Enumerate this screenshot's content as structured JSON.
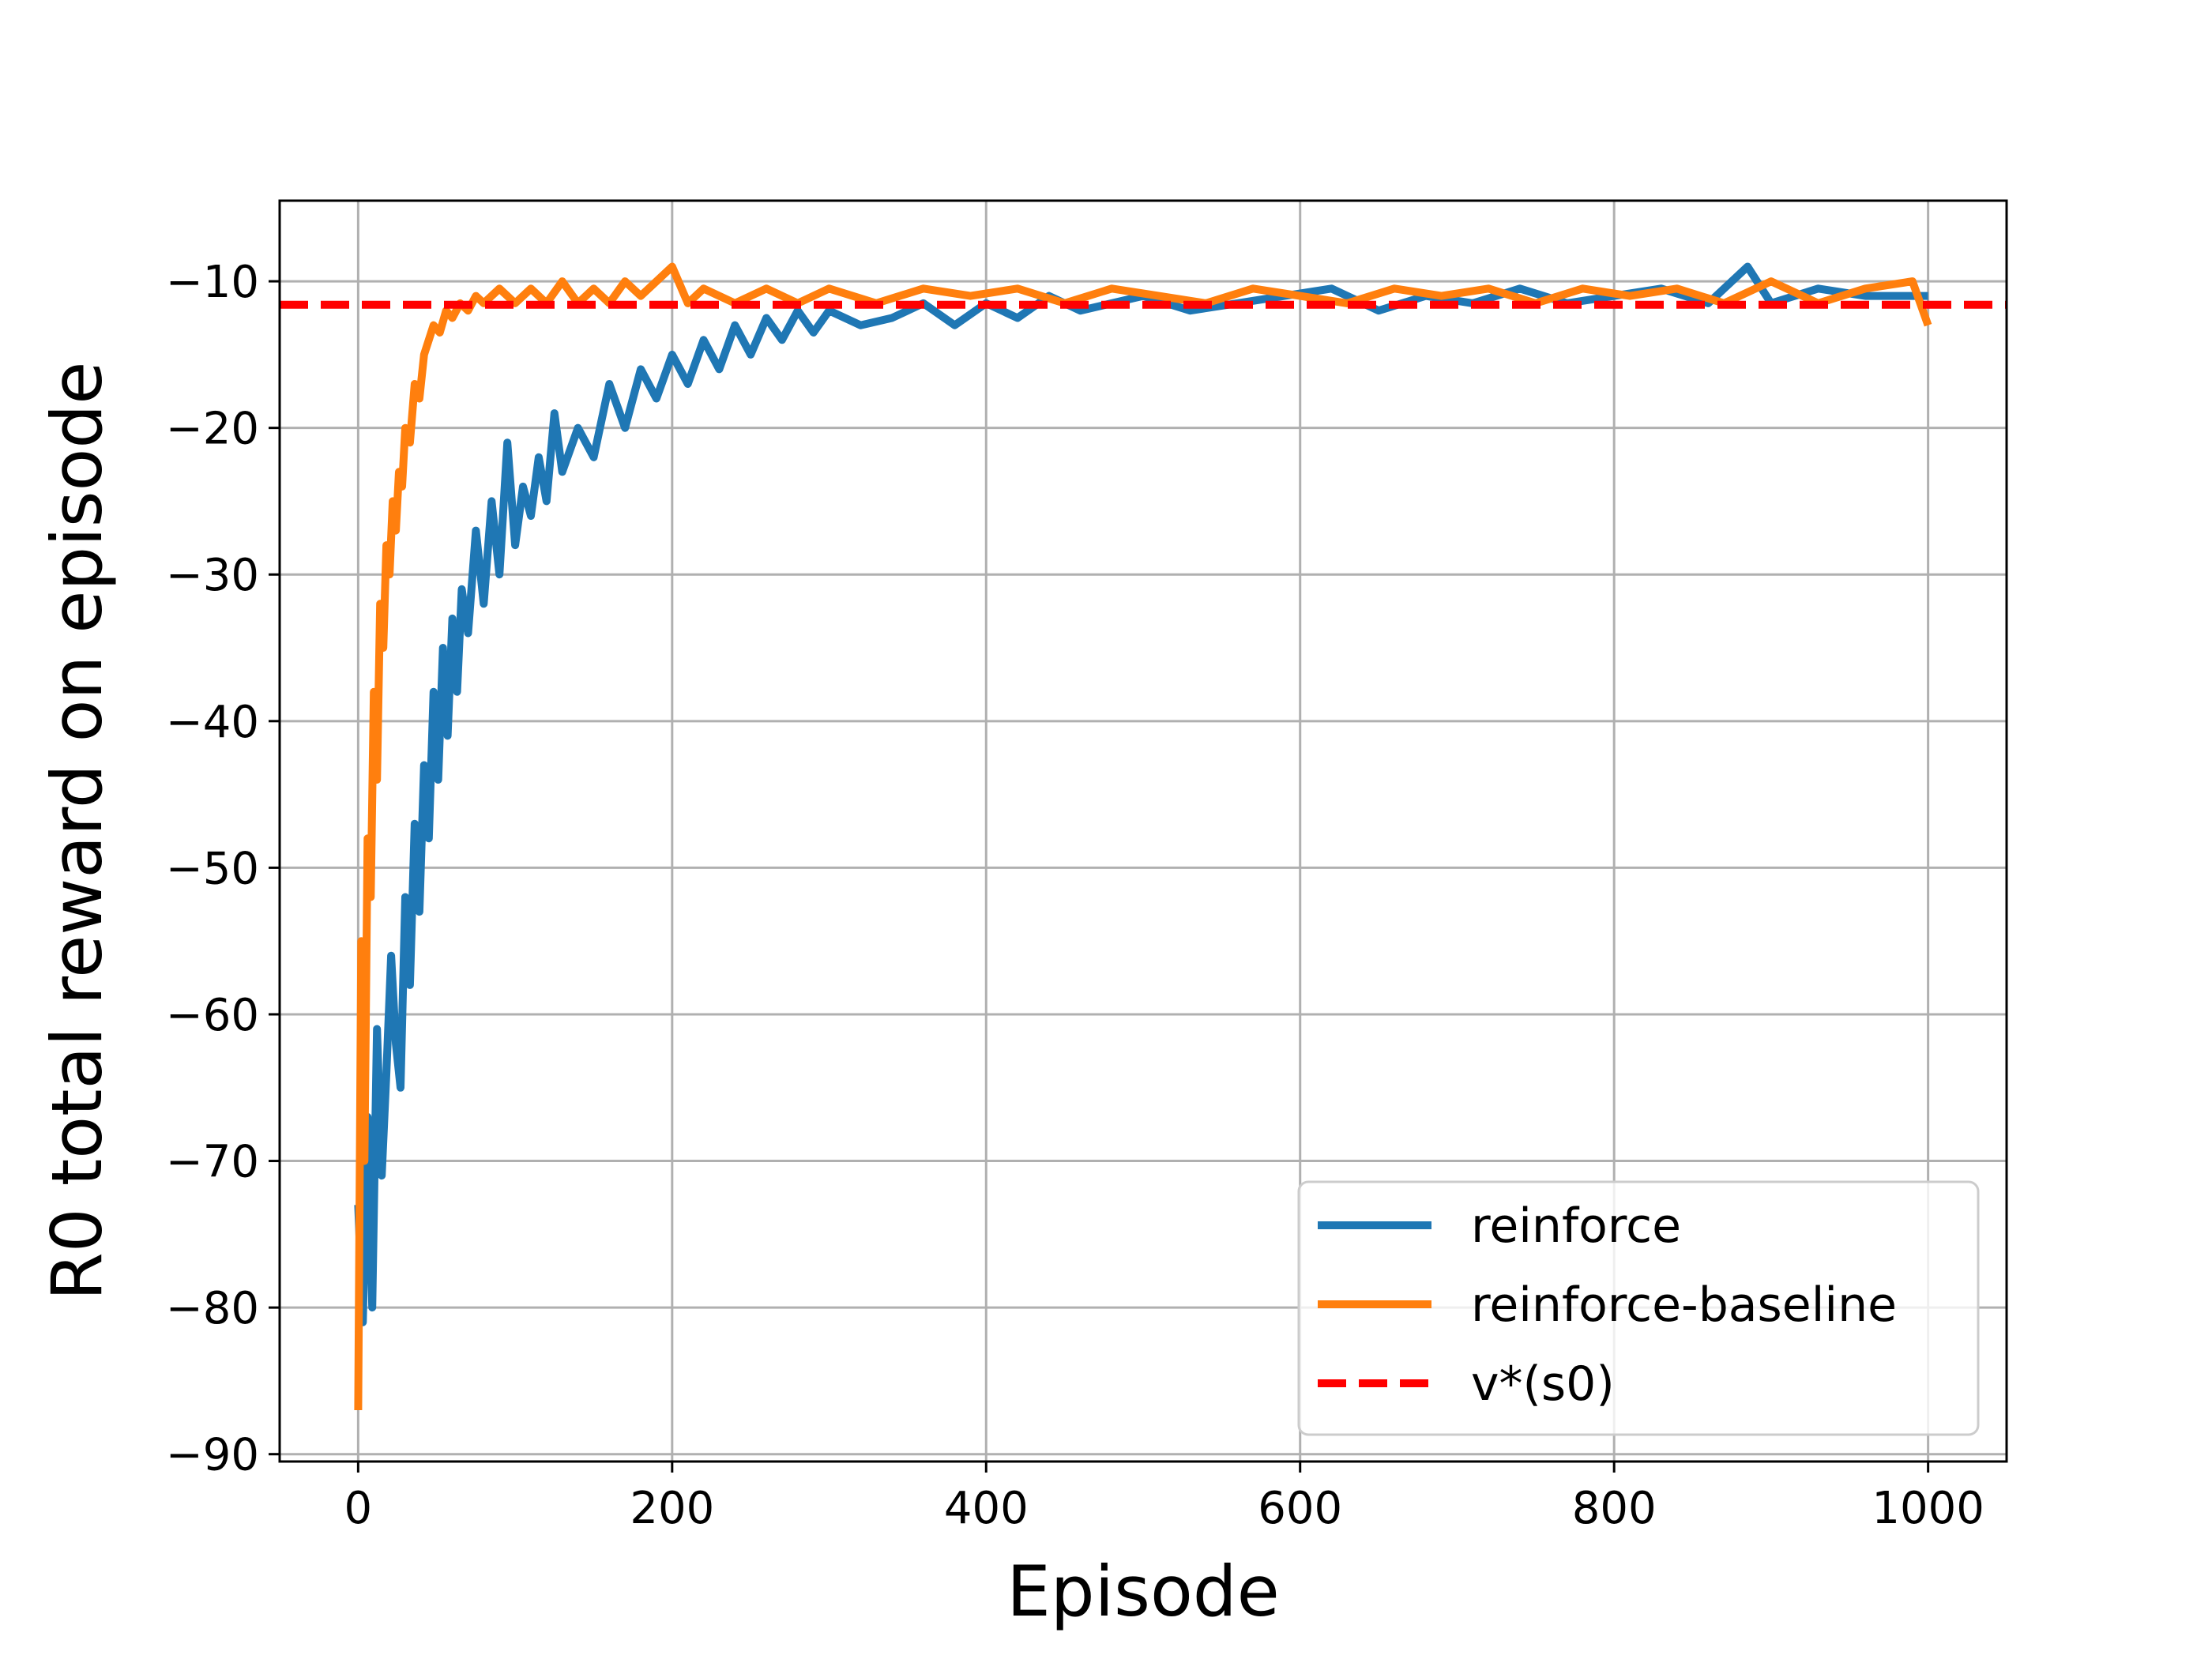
{
  "chart_data": {
    "type": "line",
    "title": "",
    "xlabel": "Episode",
    "ylabel": "R0 total reward on episode",
    "xlim": [
      -50,
      1050
    ],
    "ylim": [
      -90.5,
      -4.5
    ],
    "xticks": [
      0,
      200,
      400,
      600,
      800,
      1000
    ],
    "yticks": [
      -90,
      -80,
      -70,
      -60,
      -50,
      -40,
      -30,
      -20,
      -10
    ],
    "xtick_labels": [
      "0",
      "200",
      "400",
      "600",
      "800",
      "1000"
    ],
    "ytick_labels": [
      "−90",
      "−80",
      "−70",
      "−60",
      "−50",
      "−40",
      "−30",
      "−20",
      "−10"
    ],
    "grid": true,
    "legend_position": "lower-right",
    "series": [
      {
        "name": "reinforce",
        "color": "#1f77b4",
        "style": "solid",
        "x": [
          0,
          3,
          6,
          9,
          12,
          15,
          18,
          21,
          24,
          27,
          30,
          33,
          36,
          39,
          42,
          45,
          48,
          51,
          54,
          57,
          60,
          63,
          66,
          70,
          75,
          80,
          85,
          90,
          95,
          100,
          105,
          110,
          115,
          120,
          125,
          130,
          140,
          150,
          160,
          170,
          180,
          190,
          200,
          210,
          220,
          230,
          240,
          250,
          260,
          270,
          280,
          290,
          300,
          320,
          340,
          360,
          380,
          400,
          420,
          440,
          460,
          480,
          500,
          530,
          560,
          590,
          620,
          650,
          680,
          710,
          740,
          770,
          800,
          830,
          860,
          885,
          900,
          930,
          960,
          1000
        ],
        "values": [
          -73,
          -81,
          -67,
          -80,
          -61,
          -71,
          -64,
          -56,
          -62,
          -65,
          -52,
          -58,
          -47,
          -53,
          -43,
          -48,
          -38,
          -44,
          -35,
          -41,
          -33,
          -38,
          -31,
          -34,
          -27,
          -32,
          -25,
          -30,
          -21,
          -28,
          -24,
          -26,
          -22,
          -25,
          -19,
          -23,
          -20,
          -22,
          -17,
          -20,
          -16,
          -18,
          -15,
          -17,
          -14,
          -16,
          -13,
          -15,
          -12.5,
          -14,
          -12,
          -13.5,
          -12,
          -13,
          -12.5,
          -11.5,
          -13,
          -11.5,
          -12.5,
          -11,
          -12,
          -11.5,
          -11,
          -12,
          -11.5,
          -11,
          -10.5,
          -12,
          -11,
          -11.5,
          -10.5,
          -11.5,
          -11,
          -10.5,
          -11.5,
          -9,
          -11.5,
          -10.5,
          -11,
          -11
        ]
      },
      {
        "name": "reinforce-baseline",
        "color": "#ff7f0e",
        "style": "solid",
        "x": [
          0,
          2,
          4,
          6,
          8,
          10,
          12,
          14,
          16,
          18,
          20,
          22,
          24,
          26,
          28,
          30,
          33,
          36,
          39,
          42,
          45,
          48,
          52,
          56,
          60,
          65,
          70,
          75,
          80,
          90,
          100,
          110,
          120,
          130,
          140,
          150,
          160,
          170,
          180,
          190,
          200,
          210,
          220,
          240,
          260,
          280,
          300,
          330,
          360,
          390,
          420,
          450,
          480,
          510,
          540,
          570,
          600,
          630,
          660,
          690,
          720,
          750,
          780,
          810,
          840,
          870,
          900,
          930,
          960,
          990,
          1000
        ],
        "values": [
          -87,
          -55,
          -70,
          -48,
          -52,
          -38,
          -44,
          -32,
          -35,
          -28,
          -30,
          -25,
          -27,
          -23,
          -24,
          -20,
          -21,
          -17,
          -18,
          -15,
          -14,
          -13,
          -13.5,
          -12,
          -12.5,
          -11.5,
          -12,
          -11,
          -11.5,
          -10.5,
          -11.5,
          -10.5,
          -11.5,
          -10,
          -11.5,
          -10.5,
          -11.5,
          -10,
          -11,
          -10,
          -9,
          -11.5,
          -10.5,
          -11.5,
          -10.5,
          -11.5,
          -10.5,
          -11.5,
          -10.5,
          -11,
          -10.5,
          -11.5,
          -10.5,
          -11,
          -11.5,
          -10.5,
          -11,
          -11.5,
          -10.5,
          -11,
          -10.5,
          -11.5,
          -10.5,
          -11,
          -10.5,
          -11.5,
          -10,
          -11.5,
          -10.5,
          -10,
          -13
        ]
      },
      {
        "name": "v*(s0)",
        "color": "#ff0000",
        "style": "dashed",
        "constant": -11.6
      }
    ]
  }
}
